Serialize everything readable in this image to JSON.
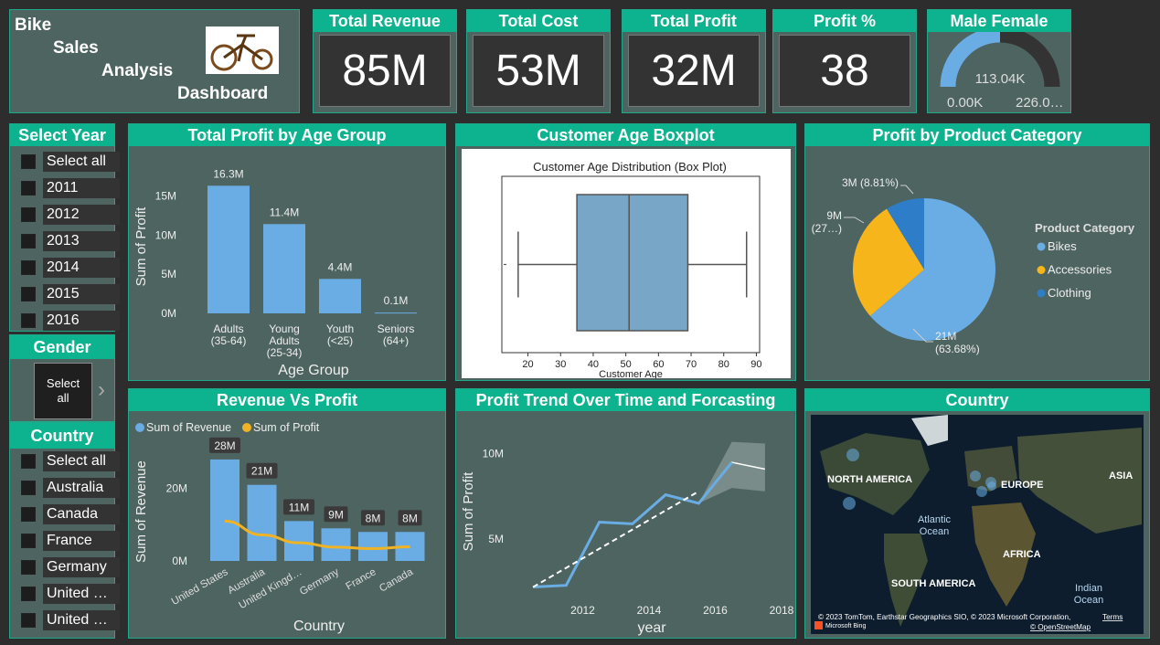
{
  "dashboard": {
    "title_words": [
      "Bike",
      "Sales",
      "Analysis",
      "Dashboard"
    ]
  },
  "kpis": [
    {
      "label": "Total Revenue",
      "value": "85M"
    },
    {
      "label": "Total Cost",
      "value": "53M"
    },
    {
      "label": "Total Profit",
      "value": "32M"
    },
    {
      "label": "Profit %",
      "value": "38"
    }
  ],
  "gender_gauge": {
    "title": "Male Female",
    "value_label": "113.04K",
    "min_label": "0.00K",
    "max_label": "226.0…",
    "fraction": 0.5
  },
  "year_slicer": {
    "title": "Select Year",
    "items": [
      "Select all",
      "2011",
      "2012",
      "2013",
      "2014",
      "2015",
      "2016"
    ]
  },
  "gender_slicer": {
    "title": "Gender",
    "button_line1": "Select",
    "button_line2": "all",
    "arrow": "›"
  },
  "country_slicer": {
    "title": "Country",
    "items": [
      "Select all",
      "Australia",
      "Canada",
      "France",
      "Germany",
      "United …",
      "United …"
    ]
  },
  "colors": {
    "accent": "#0db38e",
    "panel": "#4e6460",
    "bar": "#6aade4",
    "profit_line": "#f0b323",
    "bikes": "#6aade4",
    "accessories": "#f7b51c",
    "clothing": "#2d7dc9"
  },
  "chart_data": [
    {
      "type": "bar",
      "panel_title": "Total Profit by Age Group",
      "categories": [
        [
          "Adults",
          "(35-64)"
        ],
        [
          "Young",
          "Adults",
          "(25-34)"
        ],
        [
          "Youth",
          "(<25)"
        ],
        [
          "Seniors",
          "(64+)"
        ]
      ],
      "values": [
        16.3,
        11.4,
        4.4,
        0.1
      ],
      "data_labels": [
        "16.3M",
        "11.4M",
        "4.4M",
        "0.1M"
      ],
      "ylim": [
        0,
        17.5
      ],
      "yticks": [
        0,
        5,
        10,
        15
      ],
      "ytick_labels": [
        "0M",
        "5M",
        "10M",
        "15M"
      ],
      "xlabel": "Age Group",
      "ylabel": "Sum of Profit"
    },
    {
      "type": "boxplot",
      "panel_title": "Customer Age Boxplot",
      "title": "Customer Age Distribution (Box Plot)",
      "xlabel": "Customer Age",
      "whisker_low": 17,
      "q1": 35,
      "median": 51,
      "q3": 69,
      "whisker_high": 87,
      "xlim": [
        12,
        91
      ],
      "xticks": [
        20,
        30,
        40,
        50,
        60,
        70,
        80,
        90
      ]
    },
    {
      "type": "pie",
      "panel_title": "Profit by Product Category",
      "legend_title": "Product Category",
      "categories": [
        "Bikes",
        "Accessories",
        "Clothing"
      ],
      "values": [
        63.68,
        27.51,
        8.81
      ],
      "data_labels": [
        "21M\n(63.68%)",
        "9M\n(27…)",
        "3M (8.81%)"
      ]
    },
    {
      "type": "bar",
      "panel_title": "Revenue Vs Profit",
      "categories": [
        "United States",
        "Australia",
        "United Kingd…",
        "Germany",
        "France",
        "Canada"
      ],
      "series": [
        {
          "name": "Sum of Revenue",
          "type": "bar",
          "values": [
            28,
            21,
            11,
            9,
            8,
            8
          ]
        },
        {
          "name": "Sum of Profit",
          "type": "line",
          "values": [
            11,
            7.2,
            5.0,
            3.8,
            3.4,
            3.9
          ]
        }
      ],
      "data_labels": [
        "28M",
        "21M",
        "11M",
        "9M",
        "8M",
        "8M"
      ],
      "ylim": [
        0,
        30
      ],
      "yticks": [
        0,
        20
      ],
      "ytick_labels": [
        "0M",
        "20M"
      ],
      "xlabel": "Country",
      "ylabel": "Sum of Revenue"
    },
    {
      "type": "line",
      "panel_title": "Profit Trend Over Time and Forcasting",
      "x": [
        2010.5,
        2011.5,
        2012.5,
        2013.5,
        2014.5,
        2015.5,
        2016.5
      ],
      "y": [
        2.2,
        2.3,
        6.0,
        5.9,
        7.6,
        7.1,
        9.5
      ],
      "forecast": {
        "x": [
          2015.5,
          2016.5,
          2017.5
        ],
        "y": [
          7.1,
          9.5,
          9.1
        ],
        "upper": [
          7.1,
          10.7,
          10.6
        ],
        "lower": [
          7.1,
          8.0,
          7.8
        ]
      },
      "trend": {
        "x": [
          2010.5,
          2015.5
        ],
        "y": [
          2.2,
          7.8
        ]
      },
      "xticks": [
        2012,
        2014,
        2016,
        2018
      ],
      "yticks": [
        5,
        10
      ],
      "ytick_labels": [
        "5M",
        "10M"
      ],
      "xlim": [
        2010,
        2018
      ],
      "ylim": [
        1,
        11
      ],
      "xlabel": "year",
      "ylabel": "Sum of Profit"
    }
  ],
  "map": {
    "panel_title": "Country",
    "labels": [
      "NORTH AMERICA",
      "EUROPE",
      "ASIA",
      "Atlantic\nOcean",
      "AFRICA",
      "SOUTH AMERICA",
      "Indian\nOcean"
    ],
    "copyright": "© 2023 TomTom, Earthstar Geographics SIO, © 2023 Microsoft Corporation,",
    "terms": "Terms",
    "osm": "© OpenStreetMap",
    "bing": "Microsoft Bing"
  }
}
